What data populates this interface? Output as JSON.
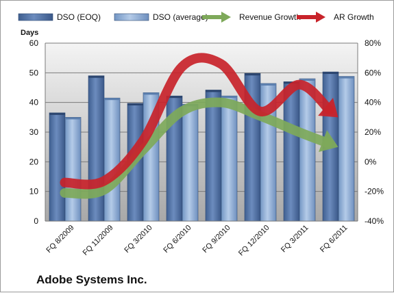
{
  "chart_data": {
    "type": "bar",
    "title": "Adobe Systems Inc.",
    "categories": [
      "FQ 8/2009",
      "FQ 11/2009",
      "FQ 3/2010",
      "FQ 6/2010",
      "FQ 9/2010",
      "FQ 12/2010",
      "FQ 3/2011",
      "FQ 6/2011"
    ],
    "left_axis": {
      "label": "Days",
      "ylim": [
        0,
        60
      ],
      "ticks": [
        "0",
        "10",
        "20",
        "30",
        "40",
        "50",
        "60"
      ]
    },
    "right_axis": {
      "ylim": [
        -40,
        80
      ],
      "ticks": [
        "-40%",
        "-20%",
        "0%",
        "20%",
        "40%",
        "60%",
        "80%"
      ]
    },
    "series": [
      {
        "name": "DSO (EOQ)",
        "kind": "bar",
        "axis": "left",
        "color": "#4a6a9c",
        "values": [
          36.5,
          49,
          39.7,
          42.2,
          44.2,
          49.8,
          47,
          50.3
        ]
      },
      {
        "name": "DSO (average)",
        "kind": "bar",
        "axis": "left",
        "color": "#86a5ce",
        "values": [
          35,
          41.5,
          43.3,
          39.4,
          42.2,
          46.4,
          48,
          48.8
        ]
      },
      {
        "name": "Revenue Growth",
        "kind": "line-arrow",
        "axis": "right",
        "color": "#7ea95a",
        "values": [
          -21,
          -19,
          8,
          34,
          40,
          31,
          20,
          10
        ]
      },
      {
        "name": "AR Growth",
        "kind": "line-arrow",
        "axis": "right",
        "color": "#c8232a",
        "values": [
          -14,
          -13,
          14,
          64,
          66,
          34,
          52,
          30
        ]
      }
    ],
    "grid": "horizontal",
    "legend_position": "top"
  }
}
